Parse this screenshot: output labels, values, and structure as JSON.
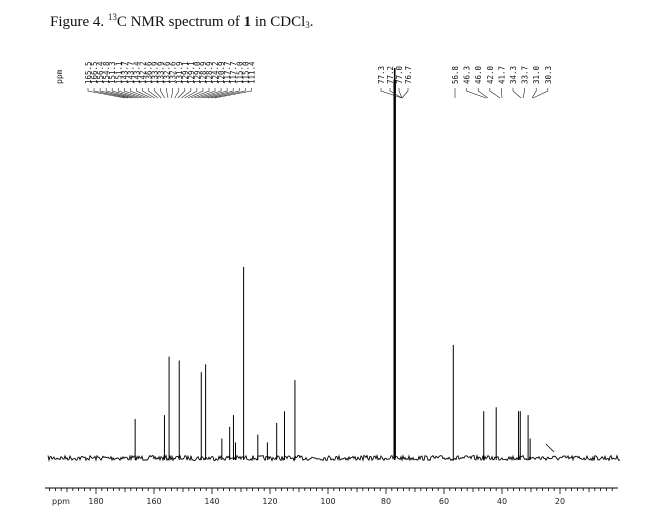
{
  "caption": {
    "figure": "Figure 4.",
    "isotope": "13",
    "text_a": "C NMR spectrum of ",
    "compound": "1",
    "text_b": " in CDCl",
    "subscript": "3",
    "text_c": "."
  },
  "chart_data": {
    "type": "line",
    "title": "",
    "xlabel": "ppm",
    "ylabel": "",
    "xlim": [
      200,
      0
    ],
    "x_ticks": [
      180,
      160,
      140,
      120,
      100,
      80,
      60,
      40,
      20
    ],
    "x_tick_labels": [
      "180",
      "160",
      "140",
      "120",
      "100",
      "80",
      "60",
      "40",
      "20"
    ],
    "peak_axis_label": "ppm",
    "peak_labels_group1": [
      "165.5",
      "166.5",
      "156.4",
      "154.8",
      "151.3",
      "151.1",
      "143.7",
      "143.7",
      "143.4",
      "142.2",
      "136.6",
      "133.9",
      "133.9",
      "132.6",
      "132.6",
      "131.9",
      "129.1",
      "129.1",
      "129.0",
      "128.9",
      "128.9",
      "124.2",
      "120.9",
      "117.7",
      "117.7",
      "115.0",
      "115.0",
      "111.4"
    ],
    "peak_labels_group2": [
      "77.3",
      "77.2",
      "77.0",
      "76.7"
    ],
    "peak_labels_group3": [
      "56.8",
      "46.3",
      "46.0",
      "42.0",
      "41.7",
      "34.3",
      "33.7",
      "31.0",
      "30.3"
    ],
    "peaks": [
      {
        "ppm": 166.5,
        "intensity": 0.1
      },
      {
        "ppm": 156.4,
        "intensity": 0.11
      },
      {
        "ppm": 151.3,
        "intensity": 0.25
      },
      {
        "ppm": 154.8,
        "intensity": 0.26
      },
      {
        "ppm": 143.7,
        "intensity": 0.22
      },
      {
        "ppm": 142.2,
        "intensity": 0.24
      },
      {
        "ppm": 136.6,
        "intensity": 0.05
      },
      {
        "ppm": 133.9,
        "intensity": 0.08
      },
      {
        "ppm": 132.6,
        "intensity": 0.11
      },
      {
        "ppm": 131.9,
        "intensity": 0.04
      },
      {
        "ppm": 129.1,
        "intensity": 0.49
      },
      {
        "ppm": 124.2,
        "intensity": 0.06
      },
      {
        "ppm": 120.9,
        "intensity": 0.04
      },
      {
        "ppm": 117.7,
        "intensity": 0.09
      },
      {
        "ppm": 115.0,
        "intensity": 0.12
      },
      {
        "ppm": 111.4,
        "intensity": 0.2
      },
      {
        "ppm": 77.0,
        "intensity": 1.0
      },
      {
        "ppm": 56.8,
        "intensity": 0.29
      },
      {
        "ppm": 46.3,
        "intensity": 0.12
      },
      {
        "ppm": 42.0,
        "intensity": 0.13
      },
      {
        "ppm": 34.3,
        "intensity": 0.12
      },
      {
        "ppm": 33.7,
        "intensity": 0.12
      },
      {
        "ppm": 31.0,
        "intensity": 0.11
      },
      {
        "ppm": 30.3,
        "intensity": 0.05
      }
    ],
    "grid": false,
    "legend": "none"
  }
}
